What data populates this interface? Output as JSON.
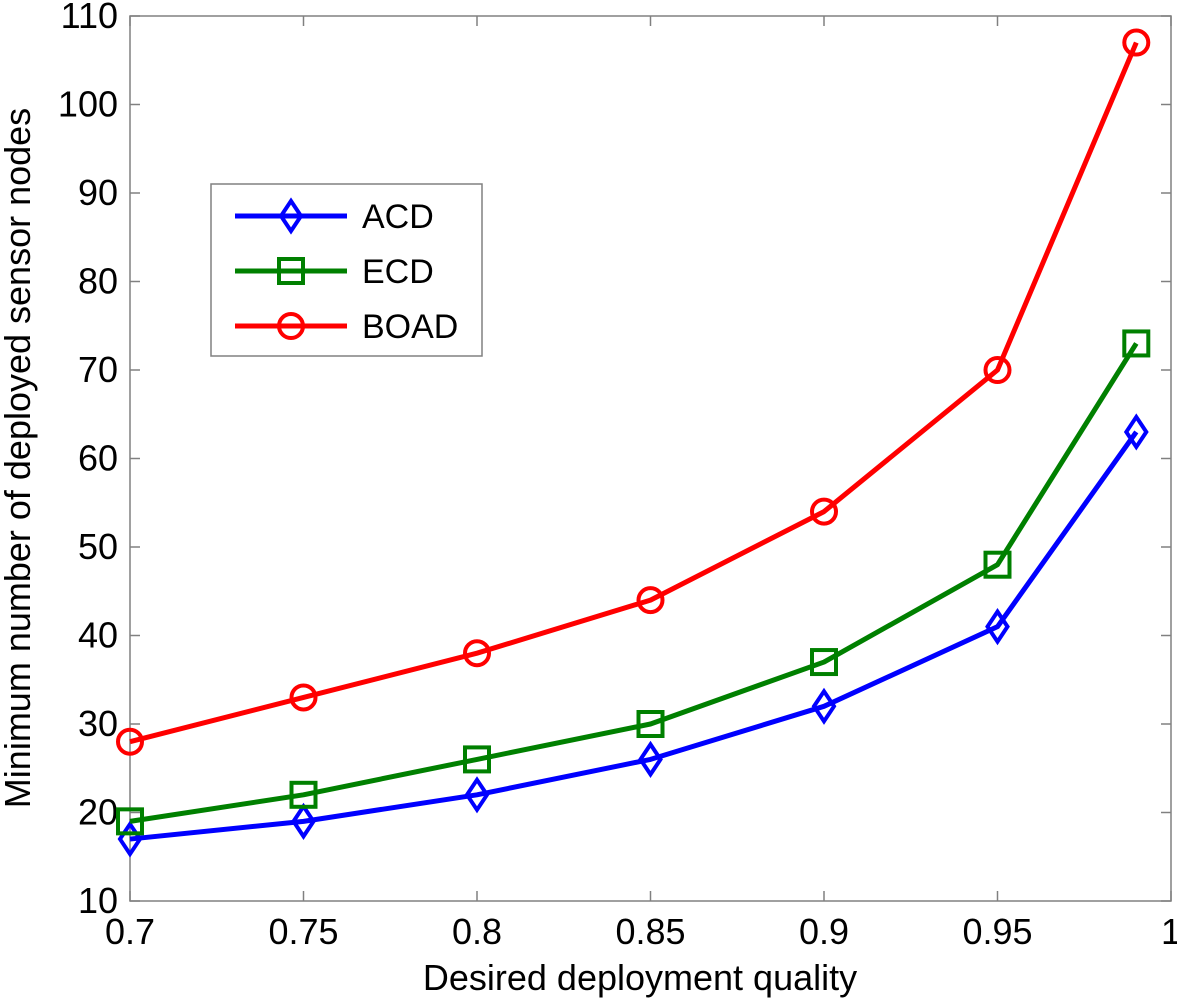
{
  "chart_data": {
    "type": "line",
    "title": "",
    "xlabel": "Desired deployment quality",
    "ylabel": "Minimum number of deployed sensor nodes",
    "xlim": [
      0.7,
      1
    ],
    "ylim": [
      10,
      110
    ],
    "xticks": [
      "0.7",
      "0.75",
      "0.8",
      "0.85",
      "0.9",
      "0.95",
      "1"
    ],
    "yticks": [
      "10",
      "20",
      "30",
      "40",
      "50",
      "60",
      "70",
      "80",
      "90",
      "100",
      "110"
    ],
    "grid": false,
    "legend_position": "upper-left",
    "x": [
      0.7,
      0.75,
      0.8,
      0.85,
      0.9,
      0.95,
      0.99
    ],
    "series": [
      {
        "name": "ACD",
        "color": "#0000ff",
        "marker": "diamond",
        "values": [
          17,
          19,
          22,
          26,
          32,
          41,
          63
        ]
      },
      {
        "name": "ECD",
        "color": "#008000",
        "marker": "square",
        "values": [
          19,
          22,
          26,
          30,
          37,
          48,
          73
        ]
      },
      {
        "name": "BOAD",
        "color": "#ff0000",
        "marker": "circle",
        "values": [
          28,
          33,
          38,
          44,
          54,
          70,
          107
        ]
      }
    ]
  }
}
